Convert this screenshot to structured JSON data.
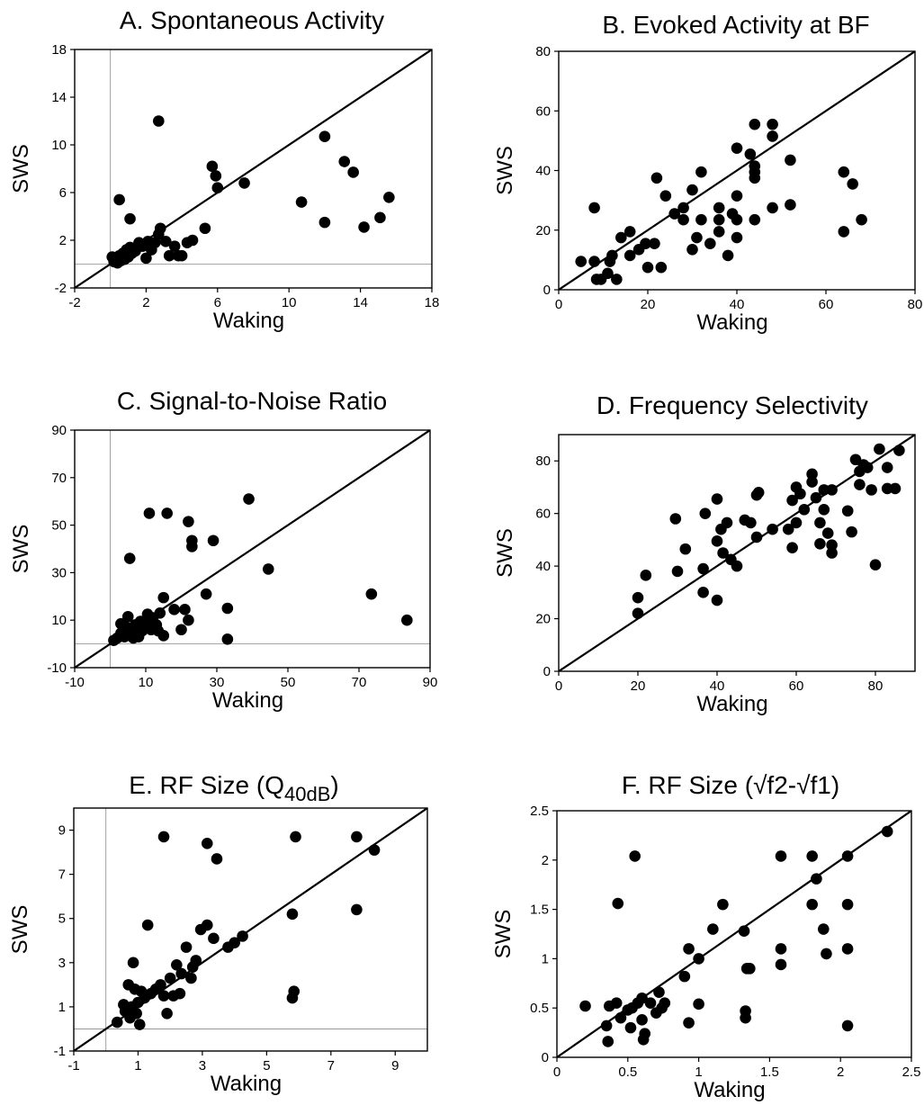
{
  "chart_data": [
    {
      "type": "scatter",
      "title": "A. Spontaneous Activity",
      "xlabel": "Waking",
      "ylabel": "SWS",
      "xlim": [
        -2,
        18
      ],
      "ylim": [
        -2,
        18
      ],
      "xticks": [
        "-2",
        "2",
        "6",
        "10",
        "14",
        "18"
      ],
      "yticks": [
        "-2",
        "2",
        "6",
        "10",
        "14",
        "18"
      ],
      "zero_lines": true,
      "identity_line": true,
      "points": [
        [
          0.1,
          0.6
        ],
        [
          0.2,
          0.2
        ],
        [
          0.3,
          0.5
        ],
        [
          0.4,
          0.1
        ],
        [
          0.5,
          0.7
        ],
        [
          0.6,
          0.3
        ],
        [
          0.7,
          0.9
        ],
        [
          0.8,
          0.4
        ],
        [
          0.9,
          1.2
        ],
        [
          1.0,
          0.6
        ],
        [
          1.1,
          1.4
        ],
        [
          1.2,
          0.9
        ],
        [
          1.4,
          1.1
        ],
        [
          1.6,
          1.8
        ],
        [
          1.8,
          1.5
        ],
        [
          2.0,
          0.5
        ],
        [
          2.1,
          1.9
        ],
        [
          2.3,
          1.2
        ],
        [
          2.5,
          1.8
        ],
        [
          2.7,
          2.5
        ],
        [
          2.8,
          3.0
        ],
        [
          3.1,
          1.9
        ],
        [
          3.3,
          0.7
        ],
        [
          3.6,
          1.5
        ],
        [
          3.8,
          0.7
        ],
        [
          4.0,
          0.7
        ],
        [
          4.3,
          1.8
        ],
        [
          4.6,
          2.0
        ],
        [
          5.3,
          3.0
        ],
        [
          5.7,
          8.2
        ],
        [
          5.9,
          7.4
        ],
        [
          6.0,
          6.4
        ],
        [
          7.5,
          6.8
        ],
        [
          0.5,
          5.4
        ],
        [
          1.1,
          3.8
        ],
        [
          2.7,
          12.0
        ],
        [
          10.7,
          5.2
        ],
        [
          12.0,
          10.7
        ],
        [
          12.0,
          3.5
        ],
        [
          13.1,
          8.6
        ],
        [
          13.6,
          7.7
        ],
        [
          14.2,
          3.1
        ],
        [
          15.1,
          3.9
        ],
        [
          15.6,
          5.6
        ]
      ]
    },
    {
      "type": "scatter",
      "title": "B. Evoked Activity at BF",
      "xlabel": "Waking",
      "ylabel": "SWS",
      "xlim": [
        0,
        80
      ],
      "ylim": [
        0,
        80
      ],
      "xticks": [
        "0",
        "20",
        "40",
        "60",
        "80"
      ],
      "yticks": [
        "0",
        "20",
        "40",
        "60",
        "80"
      ],
      "zero_lines": false,
      "identity_line": true,
      "points": [
        [
          5,
          9.5
        ],
        [
          8,
          27.5
        ],
        [
          8,
          9.5
        ],
        [
          8.5,
          3.5
        ],
        [
          9.5,
          3.5
        ],
        [
          11,
          5.5
        ],
        [
          11.5,
          9.5
        ],
        [
          12,
          11.5
        ],
        [
          13,
          3.5
        ],
        [
          14,
          17.5
        ],
        [
          16,
          11.5
        ],
        [
          16,
          19.5
        ],
        [
          18,
          13.5
        ],
        [
          19.5,
          15.5
        ],
        [
          20,
          7.5
        ],
        [
          21.5,
          15.5
        ],
        [
          22,
          37.5
        ],
        [
          23,
          7.5
        ],
        [
          24,
          31.5
        ],
        [
          26,
          25.5
        ],
        [
          28,
          27.5
        ],
        [
          28,
          23.5
        ],
        [
          30,
          33.5
        ],
        [
          30,
          13.5
        ],
        [
          31,
          17.5
        ],
        [
          32,
          23.5
        ],
        [
          32,
          39.5
        ],
        [
          34,
          15.5
        ],
        [
          36,
          27.5
        ],
        [
          36,
          23.5
        ],
        [
          36,
          19.5
        ],
        [
          38,
          11.5
        ],
        [
          39,
          25.5
        ],
        [
          40,
          47.5
        ],
        [
          40,
          31.5
        ],
        [
          40,
          17.5
        ],
        [
          40,
          23.5
        ],
        [
          43,
          45.5
        ],
        [
          44,
          23.5
        ],
        [
          44,
          37.5
        ],
        [
          44,
          41.5
        ],
        [
          44,
          39.5
        ],
        [
          44,
          55.5
        ],
        [
          48,
          55.5
        ],
        [
          48,
          51.5
        ],
        [
          48,
          27.5
        ],
        [
          52,
          43.5
        ],
        [
          52,
          28.5
        ],
        [
          64,
          39.5
        ],
        [
          64,
          19.5
        ],
        [
          66,
          35.5
        ],
        [
          68,
          23.5
        ]
      ]
    },
    {
      "type": "scatter",
      "title": "C. Signal-to-Noise Ratio",
      "xlabel": "Waking",
      "ylabel": "SWS",
      "xlim": [
        -10,
        90
      ],
      "ylim": [
        -10,
        90
      ],
      "xticks": [
        "-10",
        "10",
        "30",
        "50",
        "70",
        "90"
      ],
      "yticks": [
        "-10",
        "10",
        "30",
        "50",
        "70",
        "90"
      ],
      "zero_lines": true,
      "identity_line": true,
      "points": [
        [
          1,
          1.5
        ],
        [
          2,
          2.5
        ],
        [
          3,
          4.5
        ],
        [
          3,
          8.5
        ],
        [
          4,
          3
        ],
        [
          4.5,
          7
        ],
        [
          5,
          11.5
        ],
        [
          5.5,
          36
        ],
        [
          6,
          5
        ],
        [
          6.5,
          2.5
        ],
        [
          7,
          8
        ],
        [
          7.5,
          4.5
        ],
        [
          8,
          3
        ],
        [
          8.5,
          9.5
        ],
        [
          9,
          5.5
        ],
        [
          10,
          8
        ],
        [
          10.5,
          12.5
        ],
        [
          11,
          55
        ],
        [
          11.5,
          6
        ],
        [
          12,
          11
        ],
        [
          13,
          8
        ],
        [
          13.5,
          5.5
        ],
        [
          14,
          13
        ],
        [
          15,
          19.5
        ],
        [
          15,
          3.5
        ],
        [
          16,
          55
        ],
        [
          18,
          14.5
        ],
        [
          20,
          6
        ],
        [
          21,
          14.5
        ],
        [
          22,
          51.5
        ],
        [
          22,
          10
        ],
        [
          23,
          41
        ],
        [
          23,
          43.5
        ],
        [
          27,
          21
        ],
        [
          29,
          43.5
        ],
        [
          33,
          15
        ],
        [
          33,
          2
        ],
        [
          39,
          61
        ],
        [
          44.5,
          31.5
        ],
        [
          73.5,
          21
        ],
        [
          83.5,
          10
        ]
      ]
    },
    {
      "type": "scatter",
      "title": "D. Frequency Selectivity",
      "xlabel": "Waking",
      "ylabel": "SWS",
      "xlim": [
        0,
        90
      ],
      "ylim": [
        0,
        90
      ],
      "xticks": [
        "0",
        "20",
        "40",
        "60",
        "80"
      ],
      "yticks": [
        "0",
        "20",
        "40",
        "60",
        "80"
      ],
      "zero_lines": false,
      "identity_line": true,
      "points": [
        [
          20,
          22
        ],
        [
          20,
          28
        ],
        [
          22,
          36.5
        ],
        [
          29.5,
          58
        ],
        [
          30,
          38
        ],
        [
          32,
          46.5
        ],
        [
          36.5,
          39
        ],
        [
          36.5,
          30
        ],
        [
          37,
          60
        ],
        [
          40,
          27
        ],
        [
          40,
          49.5
        ],
        [
          40,
          65.5
        ],
        [
          41,
          54
        ],
        [
          41.5,
          45
        ],
        [
          42.5,
          56.5
        ],
        [
          43.5,
          42.5
        ],
        [
          45,
          40
        ],
        [
          47,
          57.5
        ],
        [
          48.5,
          56.5
        ],
        [
          50,
          51
        ],
        [
          50,
          67
        ],
        [
          50.5,
          68
        ],
        [
          54,
          54
        ],
        [
          58,
          54
        ],
        [
          59,
          47
        ],
        [
          59,
          65
        ],
        [
          60,
          56.5
        ],
        [
          60,
          70
        ],
        [
          61,
          67.5
        ],
        [
          62,
          61.5
        ],
        [
          64,
          72
        ],
        [
          64,
          75
        ],
        [
          65,
          66
        ],
        [
          66,
          56.5
        ],
        [
          66,
          48.5
        ],
        [
          67,
          61.5
        ],
        [
          67,
          69
        ],
        [
          68,
          52.5
        ],
        [
          69,
          69
        ],
        [
          69,
          45
        ],
        [
          69,
          48
        ],
        [
          73,
          61
        ],
        [
          74,
          53
        ],
        [
          75,
          80.5
        ],
        [
          76,
          76
        ],
        [
          76,
          71
        ],
        [
          77,
          78.5
        ],
        [
          78,
          77.5
        ],
        [
          79,
          69
        ],
        [
          80,
          40.5
        ],
        [
          81,
          84.5
        ],
        [
          83,
          77.5
        ],
        [
          83,
          69.5
        ],
        [
          85,
          69.5
        ],
        [
          86,
          84
        ]
      ]
    },
    {
      "type": "scatter",
      "title": "E. RF Size (Q",
      "title_subscript": "40dB",
      "title_suffix": ")",
      "xlabel": "Waking",
      "ylabel": "SWS",
      "xlim": [
        -1,
        10
      ],
      "ylim": [
        -1,
        10
      ],
      "xticks": [
        "-1",
        "1",
        "3",
        "5",
        "7",
        "9"
      ],
      "yticks": [
        "-1",
        "1",
        "3",
        "5",
        "7",
        "9"
      ],
      "zero_lines": true,
      "identity_line": true,
      "points": [
        [
          0.35,
          0.3
        ],
        [
          0.55,
          1.1
        ],
        [
          0.6,
          0.8
        ],
        [
          0.7,
          2.0
        ],
        [
          0.75,
          0.5
        ],
        [
          0.8,
          1.0
        ],
        [
          0.85,
          3.0
        ],
        [
          0.9,
          1.8
        ],
        [
          0.95,
          0.7
        ],
        [
          1.0,
          1.2
        ],
        [
          1.05,
          0.2
        ],
        [
          1.1,
          1.7
        ],
        [
          1.2,
          1.4
        ],
        [
          1.3,
          4.7
        ],
        [
          1.4,
          1.6
        ],
        [
          1.55,
          1.8
        ],
        [
          1.7,
          2.0
        ],
        [
          1.8,
          1.5
        ],
        [
          1.8,
          8.7
        ],
        [
          1.9,
          0.7
        ],
        [
          2.0,
          2.3
        ],
        [
          2.1,
          1.5
        ],
        [
          2.2,
          2.9
        ],
        [
          2.3,
          1.6
        ],
        [
          2.35,
          2.5
        ],
        [
          2.5,
          3.7
        ],
        [
          2.65,
          2.3
        ],
        [
          2.7,
          2.8
        ],
        [
          2.8,
          3.1
        ],
        [
          2.95,
          4.5
        ],
        [
          3.15,
          4.7
        ],
        [
          3.15,
          8.4
        ],
        [
          3.35,
          4.1
        ],
        [
          3.45,
          7.7
        ],
        [
          3.8,
          3.7
        ],
        [
          4.0,
          3.9
        ],
        [
          4.25,
          4.2
        ],
        [
          5.8,
          5.2
        ],
        [
          5.8,
          1.4
        ],
        [
          5.85,
          1.7
        ],
        [
          5.9,
          8.7
        ],
        [
          7.8,
          8.7
        ],
        [
          7.8,
          5.4
        ],
        [
          8.35,
          8.1
        ]
      ]
    },
    {
      "type": "scatter",
      "title": "F. RF Size (√f2-√f1)",
      "xlabel": "Waking",
      "ylabel": "SWS",
      "xlim": [
        0,
        2.5
      ],
      "ylim": [
        0,
        2.5
      ],
      "xticks": [
        "0",
        "0.5",
        "1",
        "1.5",
        "2",
        "2.5"
      ],
      "yticks": [
        "0",
        "0.5",
        "1",
        "1.5",
        "2",
        "2.5"
      ],
      "zero_lines": false,
      "identity_line": true,
      "points": [
        [
          0.2,
          0.52
        ],
        [
          0.35,
          0.32
        ],
        [
          0.36,
          0.16
        ],
        [
          0.37,
          0.52
        ],
        [
          0.42,
          0.55
        ],
        [
          0.43,
          1.56
        ],
        [
          0.45,
          0.4
        ],
        [
          0.5,
          0.48
        ],
        [
          0.52,
          0.3
        ],
        [
          0.53,
          0.5
        ],
        [
          0.55,
          2.04
        ],
        [
          0.57,
          0.55
        ],
        [
          0.6,
          0.6
        ],
        [
          0.6,
          0.38
        ],
        [
          0.61,
          0.18
        ],
        [
          0.62,
          0.24
        ],
        [
          0.66,
          0.55
        ],
        [
          0.7,
          0.45
        ],
        [
          0.72,
          0.66
        ],
        [
          0.74,
          0.5
        ],
        [
          0.76,
          0.55
        ],
        [
          0.9,
          0.82
        ],
        [
          0.93,
          1.1
        ],
        [
          0.93,
          0.35
        ],
        [
          1.0,
          1.0
        ],
        [
          1.0,
          0.54
        ],
        [
          1.1,
          1.3
        ],
        [
          1.17,
          1.55
        ],
        [
          1.32,
          1.28
        ],
        [
          1.33,
          0.47
        ],
        [
          1.33,
          0.4
        ],
        [
          1.34,
          0.9
        ],
        [
          1.36,
          0.9
        ],
        [
          1.58,
          2.04
        ],
        [
          1.58,
          1.1
        ],
        [
          1.58,
          0.94
        ],
        [
          1.8,
          2.04
        ],
        [
          1.8,
          1.55
        ],
        [
          1.83,
          1.81
        ],
        [
          1.88,
          1.3
        ],
        [
          1.9,
          1.05
        ],
        [
          2.05,
          2.04
        ],
        [
          2.05,
          1.55
        ],
        [
          2.05,
          1.1
        ],
        [
          2.05,
          0.32
        ],
        [
          2.33,
          2.29
        ]
      ]
    }
  ]
}
